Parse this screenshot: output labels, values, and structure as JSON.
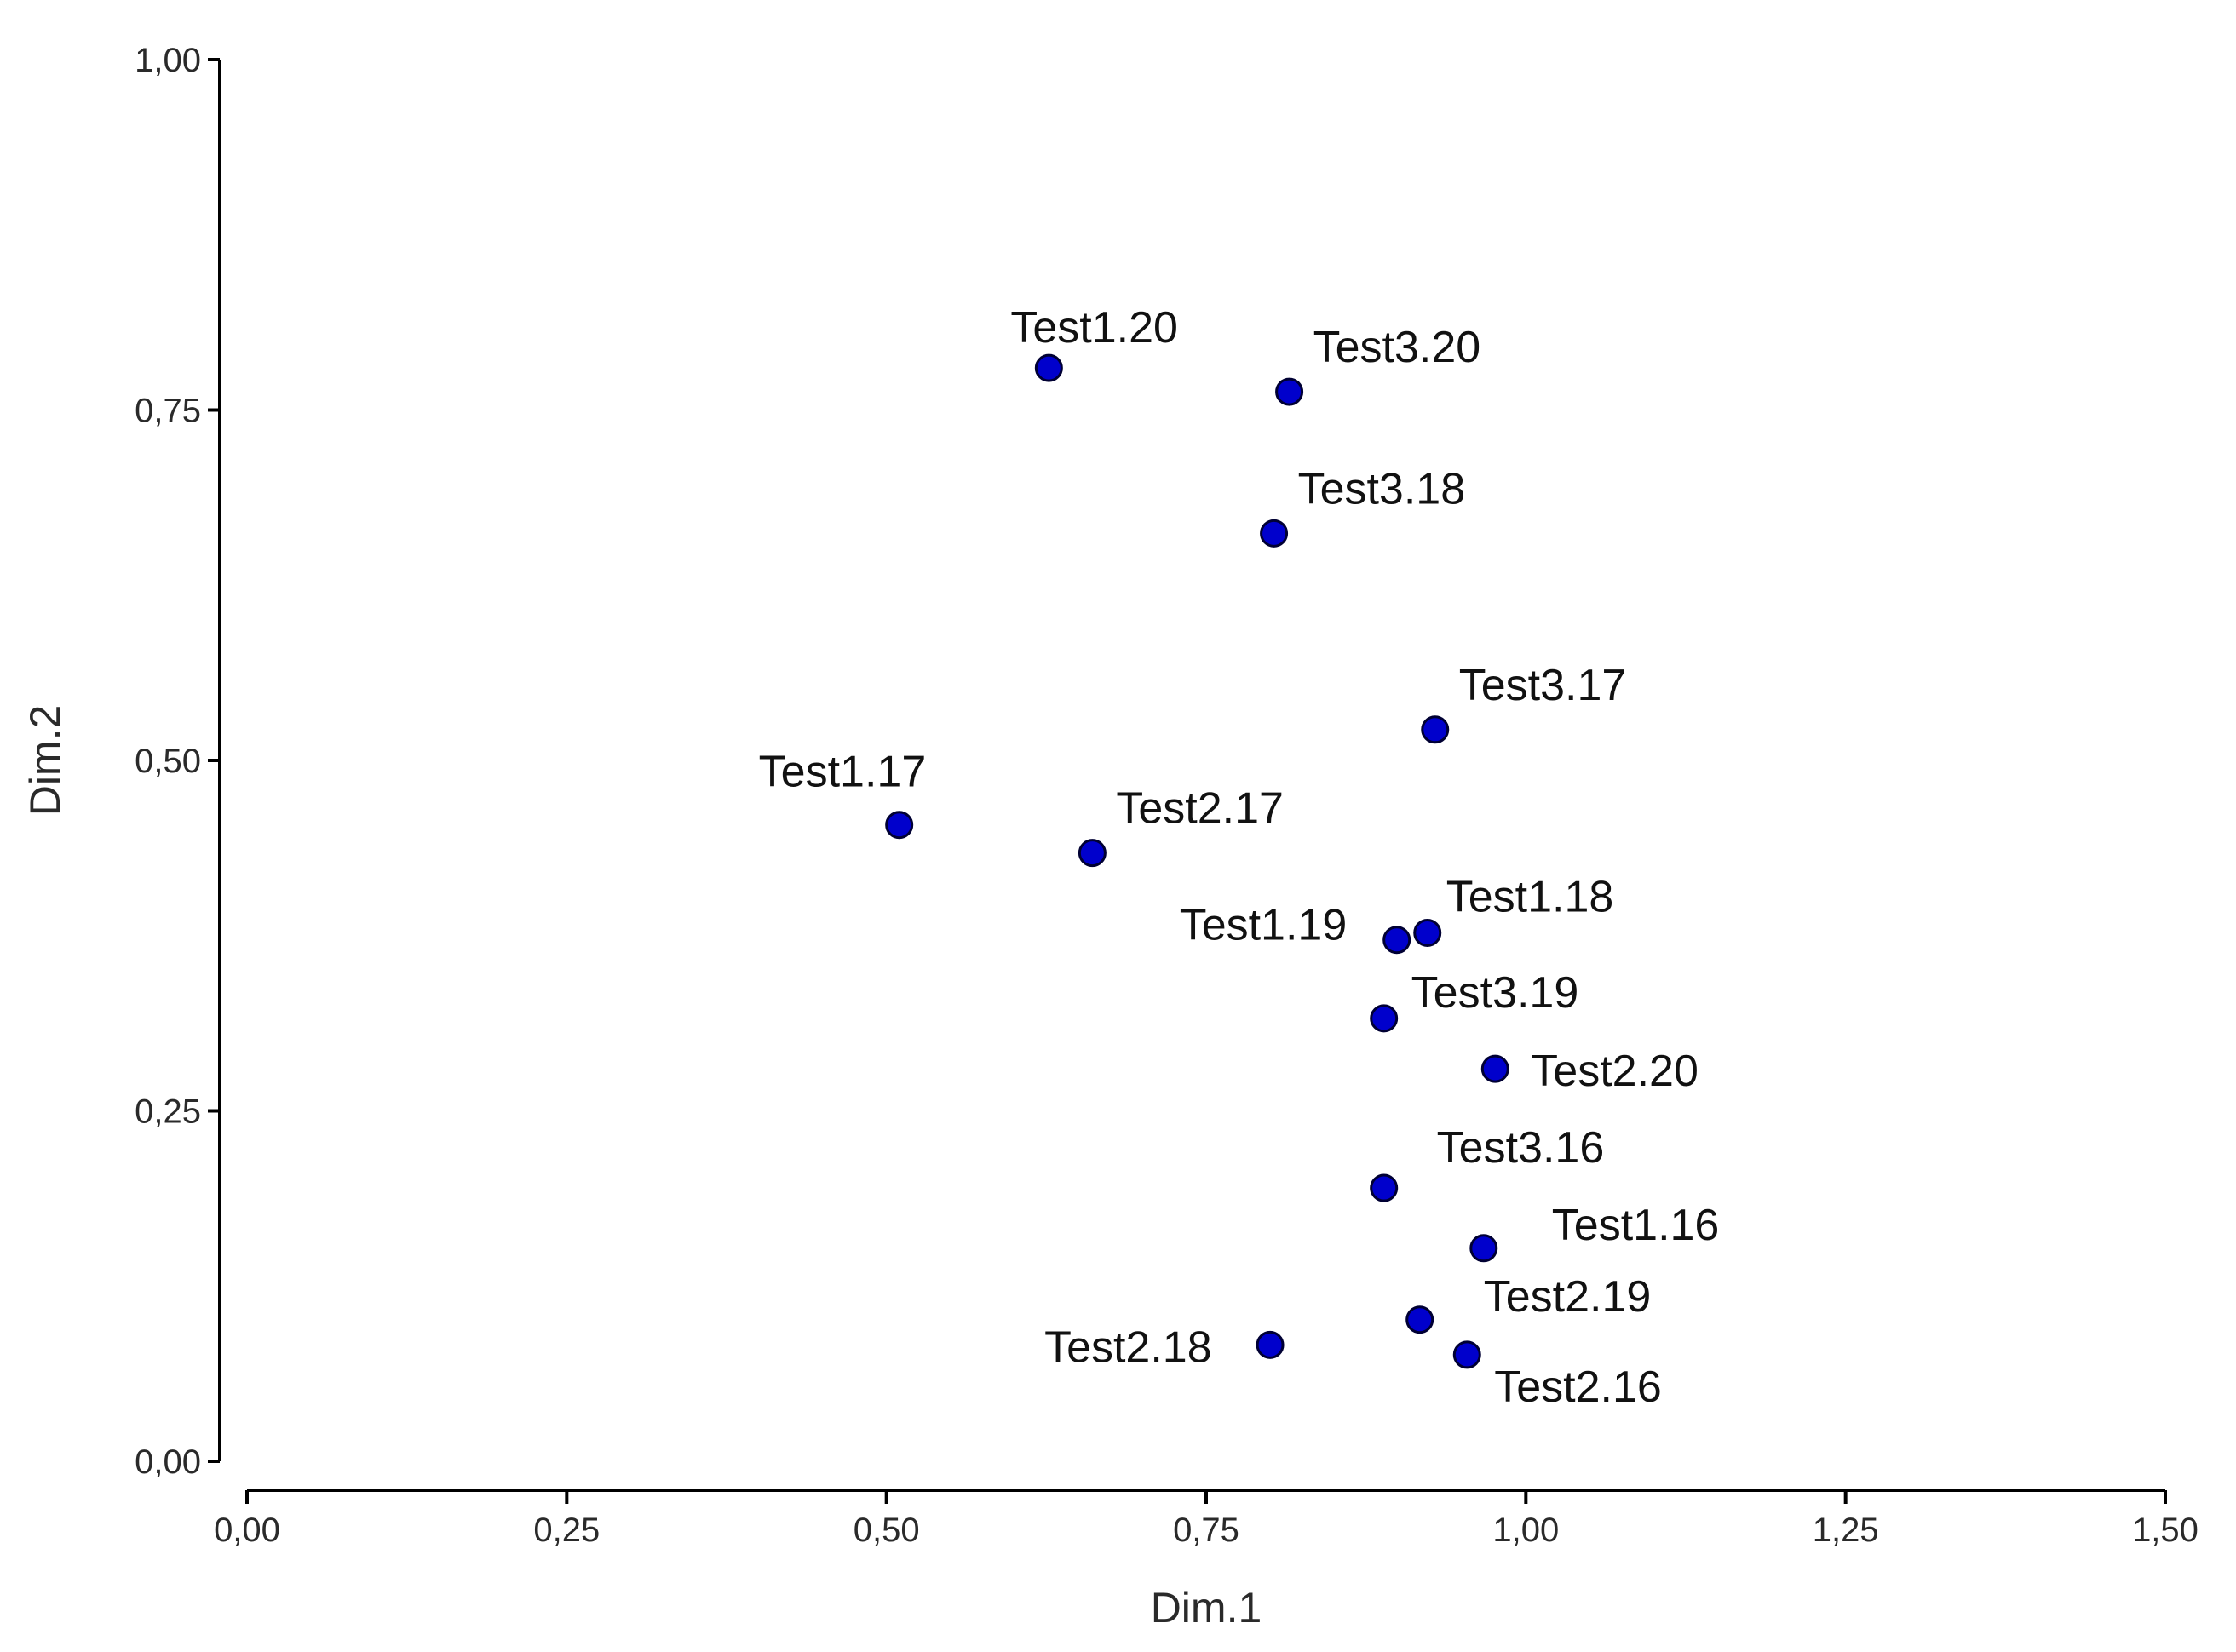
{
  "chart_data": {
    "type": "scatter",
    "xlabel": "Dim.1",
    "ylabel": "Dim.2",
    "xlim": [
      0.0,
      1.5
    ],
    "ylim": [
      0.0,
      1.0
    ],
    "x_ticks": [
      "0,00",
      "0,25",
      "0,50",
      "0,75",
      "1,00",
      "1,25",
      "1,50"
    ],
    "y_ticks": [
      "0,00",
      "0,25",
      "0,50",
      "0,75",
      "1,00"
    ],
    "grid": false,
    "marker_color": "#0000cc",
    "marker_edge_color": "#000033",
    "points": [
      {
        "label": "Test1.20",
        "x": 0.627,
        "y": 0.78
      },
      {
        "label": "Test3.20",
        "x": 0.815,
        "y": 0.763
      },
      {
        "label": "Test3.18",
        "x": 0.803,
        "y": 0.662
      },
      {
        "label": "Test3.17",
        "x": 0.929,
        "y": 0.522
      },
      {
        "label": "Test1.17",
        "x": 0.51,
        "y": 0.454
      },
      {
        "label": "Test2.17",
        "x": 0.661,
        "y": 0.434
      },
      {
        "label": "Test1.18",
        "x": 0.923,
        "y": 0.377
      },
      {
        "label": "Test1.19",
        "x": 0.899,
        "y": 0.372
      },
      {
        "label": "Test3.19",
        "x": 0.889,
        "y": 0.316
      },
      {
        "label": "Test2.20",
        "x": 0.976,
        "y": 0.28
      },
      {
        "label": "Test3.16",
        "x": 0.889,
        "y": 0.195
      },
      {
        "label": "Test1.16",
        "x": 0.967,
        "y": 0.152
      },
      {
        "label": "Test2.19",
        "x": 0.917,
        "y": 0.101
      },
      {
        "label": "Test2.18",
        "x": 0.8,
        "y": 0.083
      },
      {
        "label": "Test2.16",
        "x": 0.954,
        "y": 0.076
      }
    ]
  }
}
